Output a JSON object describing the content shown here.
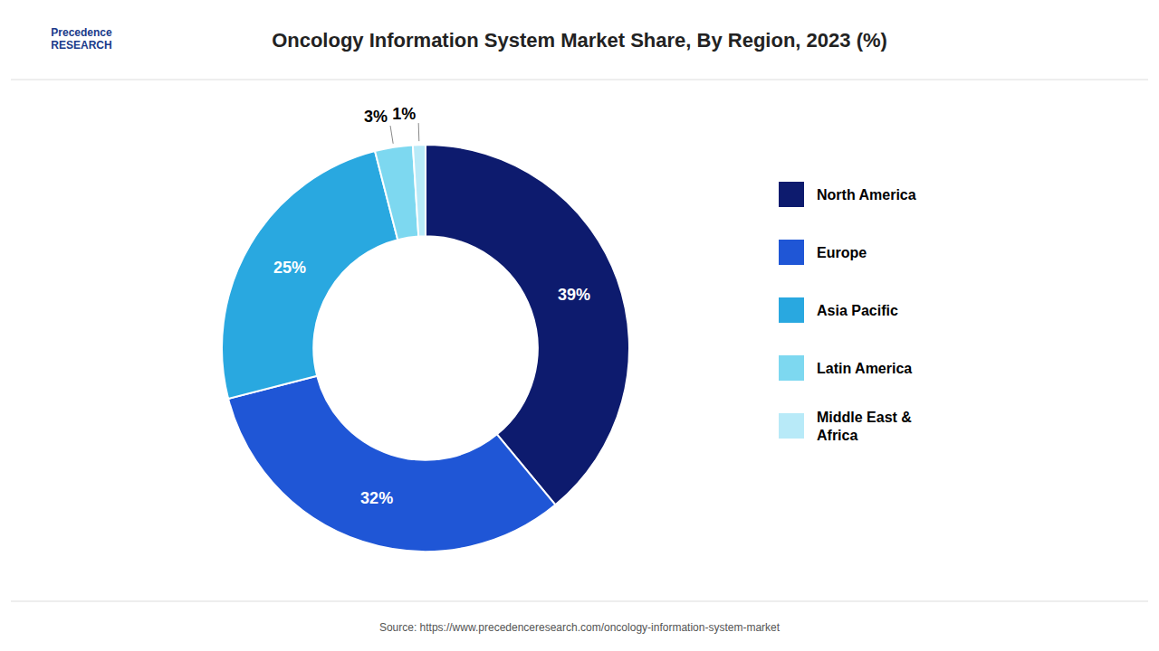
{
  "chart_data": {
    "type": "donut",
    "title": "Oncology Information System Market Share, By Region, 2023 (%)",
    "categories": [
      "North America",
      "Europe",
      "Asia Pacific",
      "Latin America",
      "Middle East &\nAfrica"
    ],
    "values": [
      39,
      32,
      25,
      3,
      1
    ],
    "value_labels": [
      "39%",
      "32%",
      "25%",
      "3%",
      "1%"
    ],
    "colors": [
      "#0d1b6e",
      "#1f56d6",
      "#29a8e0",
      "#7dd8f0",
      "#b8eaf8"
    ],
    "data_labels": true,
    "legend": "right",
    "annotations": [
      "Source: https://www.precedenceresearch.com/oncology-information-system-market",
      "Precedence\nRESEARCH"
    ]
  }
}
